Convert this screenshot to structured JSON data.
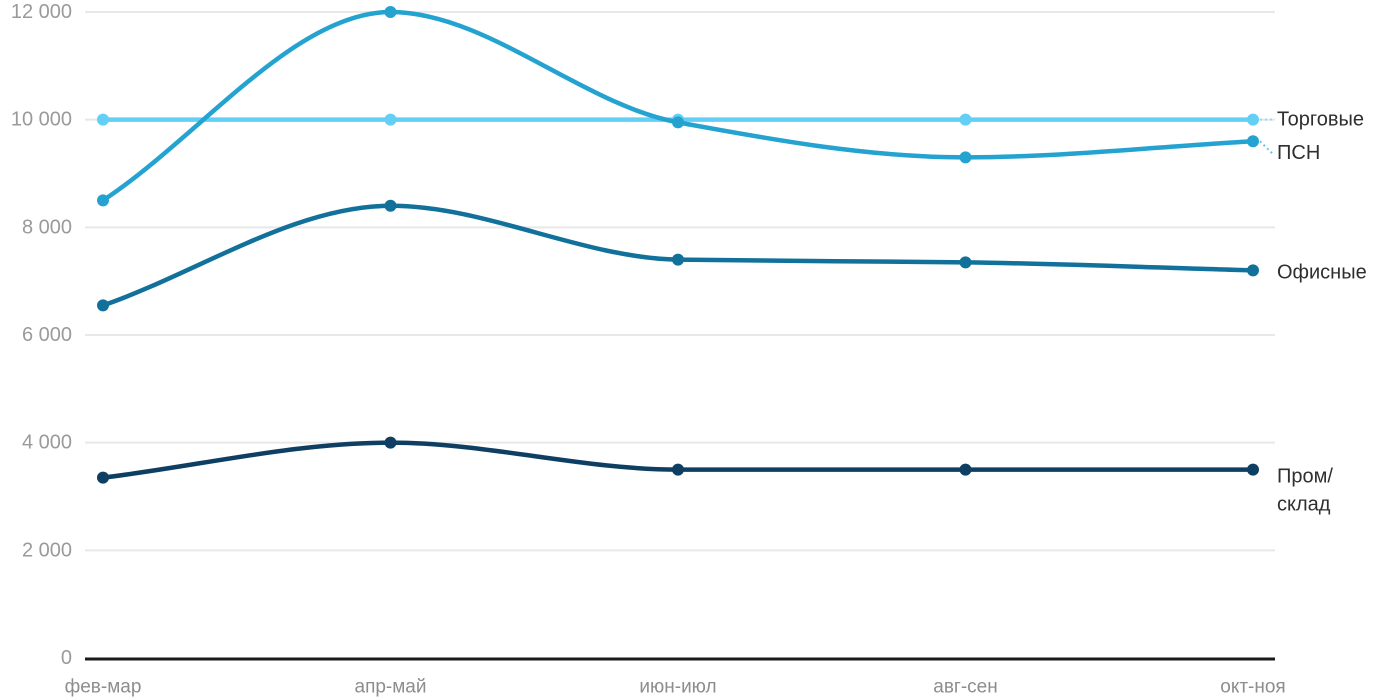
{
  "chart_data": {
    "type": "line",
    "title": "",
    "xlabel": "",
    "ylabel": "",
    "categories": [
      "фев-мар",
      "апр-май",
      "июн-июл",
      "авг-сен",
      "окт-ноя"
    ],
    "series": [
      {
        "name": "Торговые",
        "values": [
          10000,
          10000,
          10000,
          10000,
          10000
        ],
        "color": "#63CFF5",
        "label_lines": [
          "Торговые"
        ],
        "label_offset_y": 0,
        "leader": true
      },
      {
        "name": "ПСН",
        "values": [
          8500,
          12000,
          9950,
          9300,
          9600
        ],
        "color": "#24A3D1",
        "label_lines": [
          "ПСН"
        ],
        "label_offset_y": 12,
        "leader": true
      },
      {
        "name": "Офисные",
        "values": [
          6550,
          8400,
          7400,
          7350,
          7200
        ],
        "color": "#11719B",
        "label_lines": [
          "Офисные"
        ],
        "label_offset_y": 2,
        "leader": false
      },
      {
        "name": "Пром/склад",
        "values": [
          3350,
          4000,
          3500,
          3500,
          3500
        ],
        "color": "#0E3F63",
        "label_lines": [
          "Пром/",
          "склад"
        ],
        "label_offset_y": 7,
        "leader": false
      }
    ],
    "y_ticks": [
      {
        "value": 0,
        "label": "0"
      },
      {
        "value": 2000,
        "label": "2 000"
      },
      {
        "value": 4000,
        "label": "4 000"
      },
      {
        "value": 6000,
        "label": "6 000"
      },
      {
        "value": 8000,
        "label": "8 000"
      },
      {
        "value": 10000,
        "label": "10 000"
      },
      {
        "value": 12000,
        "label": "12 000"
      }
    ],
    "ylim": [
      0,
      12000
    ],
    "grid": true,
    "legend_position": "right-inline-labels",
    "colors": {
      "grid": "#E8E8E8",
      "axis": "#1A1A1A",
      "y_tick_text": "#9A9A9A",
      "x_tick_text": "#8D8D8D",
      "label_text": "#2F2F2F",
      "background": "#FFFFFF"
    }
  }
}
